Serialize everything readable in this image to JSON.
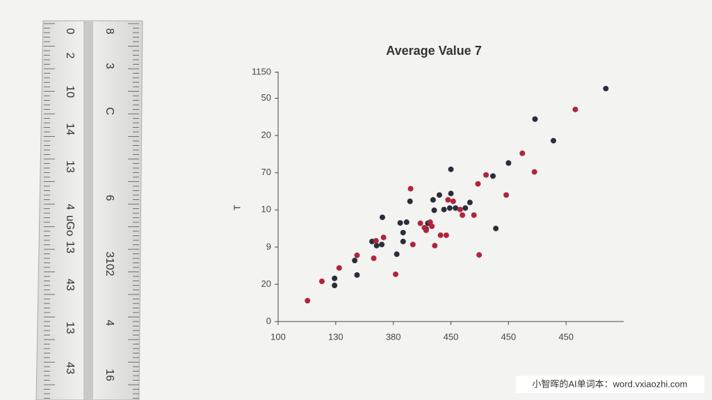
{
  "ruler": {
    "left_labels": [
      "0",
      "2",
      "10",
      "14",
      "13",
      "4",
      "uGo",
      "13",
      "43",
      "13",
      "43"
    ],
    "right_labels": [
      "8",
      "3",
      "C",
      "6",
      "3102",
      "4",
      "16"
    ]
  },
  "chart_data": {
    "type": "scatter",
    "title": "Average Value 7",
    "y_label": "T",
    "xlim": [
      0,
      6
    ],
    "ylim": [
      0,
      6.7
    ],
    "xticks": [
      {
        "value": 0,
        "label": "100"
      },
      {
        "value": 1,
        "label": "130"
      },
      {
        "value": 2,
        "label": "380"
      },
      {
        "value": 3,
        "label": "450"
      },
      {
        "value": 4,
        "label": "450"
      },
      {
        "value": 5,
        "label": "450"
      }
    ],
    "yticks": [
      0,
      {
        "value": 1,
        "label": "20"
      },
      {
        "value": 2,
        "label": "9"
      },
      {
        "value": 3,
        "label": "10"
      },
      {
        "value": 4,
        "label": "70"
      },
      {
        "value": 5,
        "label": "20"
      },
      {
        "value": 6,
        "label": "50"
      },
      {
        "value": 6.7,
        "label": "1150"
      }
    ],
    "series": [
      {
        "color": "#2b2d3a",
        "x": [
          5.69,
          4.46,
          4.78,
          4.0,
          3.0,
          3.73,
          2.69,
          2.29,
          2.8,
          3.0,
          2.98,
          2.88,
          2.71,
          3.08,
          3.25,
          3.33,
          1.81,
          2.12,
          2.23,
          2.17,
          2.6,
          2.57,
          1.63,
          1.71,
          1.8,
          2.17,
          2.06,
          1.33,
          1.37,
          0.98,
          0.98,
          3.78
        ],
        "values": [
          6.26,
          5.44,
          4.86,
          4.26,
          4.09,
          3.91,
          3.27,
          3.23,
          3.4,
          3.44,
          3.05,
          3.01,
          2.99,
          3.05,
          3.05,
          3.2,
          2.8,
          2.65,
          2.67,
          2.39,
          2.64,
          2.49,
          2.15,
          2.04,
          2.07,
          2.15,
          1.81,
          1.64,
          1.25,
          1.16,
          0.97,
          2.5
        ]
      },
      {
        "color": "#b0243e",
        "x": [
          0.51,
          0.76,
          1.06,
          1.37,
          1.66,
          1.7,
          1.83,
          2.04,
          2.34,
          2.3,
          2.47,
          2.57,
          2.64,
          2.67,
          2.54,
          2.82,
          2.92,
          2.72,
          2.95,
          3.04,
          3.16,
          3.2,
          3.4,
          3.47,
          3.61,
          3.96,
          4.24,
          4.45,
          5.16,
          3.49
        ],
        "values": [
          0.56,
          1.08,
          1.44,
          1.78,
          1.7,
          2.17,
          2.26,
          1.27,
          2.07,
          3.57,
          2.64,
          2.45,
          2.67,
          2.56,
          2.52,
          2.32,
          2.32,
          2.04,
          3.27,
          3.23,
          3.01,
          2.86,
          2.86,
          3.7,
          3.94,
          3.4,
          4.52,
          4.02,
          5.7,
          1.79
        ]
      }
    ]
  },
  "watermark": "小智晖的AI单词本：word.vxiaozhi.com"
}
